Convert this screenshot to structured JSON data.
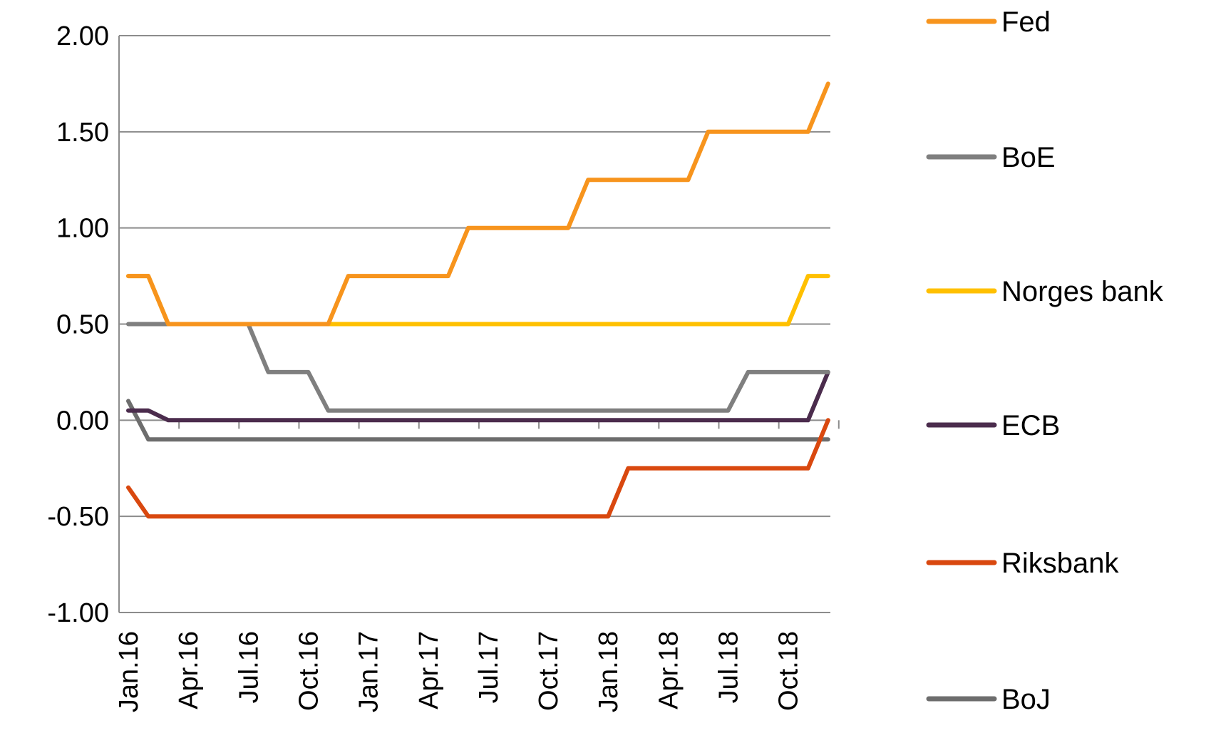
{
  "chart_data": {
    "type": "line",
    "title": "",
    "xlabel": "",
    "ylabel": "",
    "ylim": [
      -1.0,
      2.0
    ],
    "yticks": [
      "2.00",
      "1.50",
      "1.00",
      "0.50",
      "0.00",
      "-0.50",
      "-1.00"
    ],
    "ytick_values": [
      2.0,
      1.5,
      1.0,
      0.5,
      0.0,
      -0.5,
      -1.0
    ],
    "xtick_labels": [
      "Jan.16",
      "Apr.16",
      "Jul.16",
      "Oct.16",
      "Jan.17",
      "Apr.17",
      "Jul.17",
      "Oct.17",
      "Jan.18",
      "Apr.18",
      "Jul.18",
      "Oct.18"
    ],
    "x": [
      "2016-01",
      "2016-02",
      "2016-03",
      "2016-04",
      "2016-05",
      "2016-06",
      "2016-07",
      "2016-08",
      "2016-09",
      "2016-10",
      "2016-11",
      "2016-12",
      "2017-01",
      "2017-02",
      "2017-03",
      "2017-04",
      "2017-05",
      "2017-06",
      "2017-07",
      "2017-08",
      "2017-09",
      "2017-10",
      "2017-11",
      "2017-12",
      "2018-01",
      "2018-02",
      "2018-03",
      "2018-04",
      "2018-05",
      "2018-06",
      "2018-07",
      "2018-08",
      "2018-09",
      "2018-10",
      "2018-11",
      "2018-12"
    ],
    "grid": true,
    "legend": "right",
    "series": [
      {
        "name": "Fed",
        "color": "#F7941D",
        "values": [
          0.75,
          0.75,
          0.5,
          0.5,
          0.5,
          0.5,
          0.5,
          0.5,
          0.5,
          0.5,
          0.5,
          0.75,
          0.75,
          0.75,
          0.75,
          0.75,
          0.75,
          1.0,
          1.0,
          1.0,
          1.0,
          1.0,
          1.0,
          1.25,
          1.25,
          1.25,
          1.25,
          1.25,
          1.25,
          1.5,
          1.5,
          1.5,
          1.5,
          1.5,
          1.5,
          1.75
        ]
      },
      {
        "name": "BoE",
        "color": "#7F7F7F",
        "values": [
          0.5,
          0.5,
          0.5,
          0.5,
          0.5,
          0.5,
          0.5,
          0.25,
          0.25,
          0.25,
          0.05,
          0.05,
          0.05,
          0.05,
          0.05,
          0.05,
          0.05,
          0.05,
          0.05,
          0.05,
          0.05,
          0.05,
          0.05,
          0.05,
          0.05,
          0.05,
          0.05,
          0.05,
          0.05,
          0.05,
          0.05,
          0.25,
          0.25,
          0.25,
          0.25,
          0.25
        ]
      },
      {
        "name": "Norges bank",
        "color": "#FFC000",
        "values": [
          0.75,
          0.75,
          0.5,
          0.5,
          0.5,
          0.5,
          0.5,
          0.5,
          0.5,
          0.5,
          0.5,
          0.5,
          0.5,
          0.5,
          0.5,
          0.5,
          0.5,
          0.5,
          0.5,
          0.5,
          0.5,
          0.5,
          0.5,
          0.5,
          0.5,
          0.5,
          0.5,
          0.5,
          0.5,
          0.5,
          0.5,
          0.5,
          0.5,
          0.5,
          0.75,
          0.75
        ]
      },
      {
        "name": "ECB",
        "color": "#4B2C4D",
        "values": [
          0.05,
          0.05,
          0.0,
          0.0,
          0.0,
          0.0,
          0.0,
          0.0,
          0.0,
          0.0,
          0.0,
          0.0,
          0.0,
          0.0,
          0.0,
          0.0,
          0.0,
          0.0,
          0.0,
          0.0,
          0.0,
          0.0,
          0.0,
          0.0,
          0.0,
          0.0,
          0.0,
          0.0,
          0.0,
          0.0,
          0.0,
          0.0,
          0.0,
          0.0,
          0.0,
          0.25
        ]
      },
      {
        "name": "Riksbank",
        "color": "#D9480F",
        "values": [
          -0.35,
          -0.5,
          -0.5,
          -0.5,
          -0.5,
          -0.5,
          -0.5,
          -0.5,
          -0.5,
          -0.5,
          -0.5,
          -0.5,
          -0.5,
          -0.5,
          -0.5,
          -0.5,
          -0.5,
          -0.5,
          -0.5,
          -0.5,
          -0.5,
          -0.5,
          -0.5,
          -0.5,
          -0.5,
          -0.25,
          -0.25,
          -0.25,
          -0.25,
          -0.25,
          -0.25,
          -0.25,
          -0.25,
          -0.25,
          -0.25,
          0.0
        ]
      },
      {
        "name": "BoJ",
        "color": "#6D6D6D",
        "values": [
          0.1,
          -0.1,
          -0.1,
          -0.1,
          -0.1,
          -0.1,
          -0.1,
          -0.1,
          -0.1,
          -0.1,
          -0.1,
          -0.1,
          -0.1,
          -0.1,
          -0.1,
          -0.1,
          -0.1,
          -0.1,
          -0.1,
          -0.1,
          -0.1,
          -0.1,
          -0.1,
          -0.1,
          -0.1,
          -0.1,
          -0.1,
          -0.1,
          -0.1,
          -0.1,
          -0.1,
          -0.1,
          -0.1,
          -0.1,
          -0.1,
          -0.1
        ]
      }
    ]
  }
}
